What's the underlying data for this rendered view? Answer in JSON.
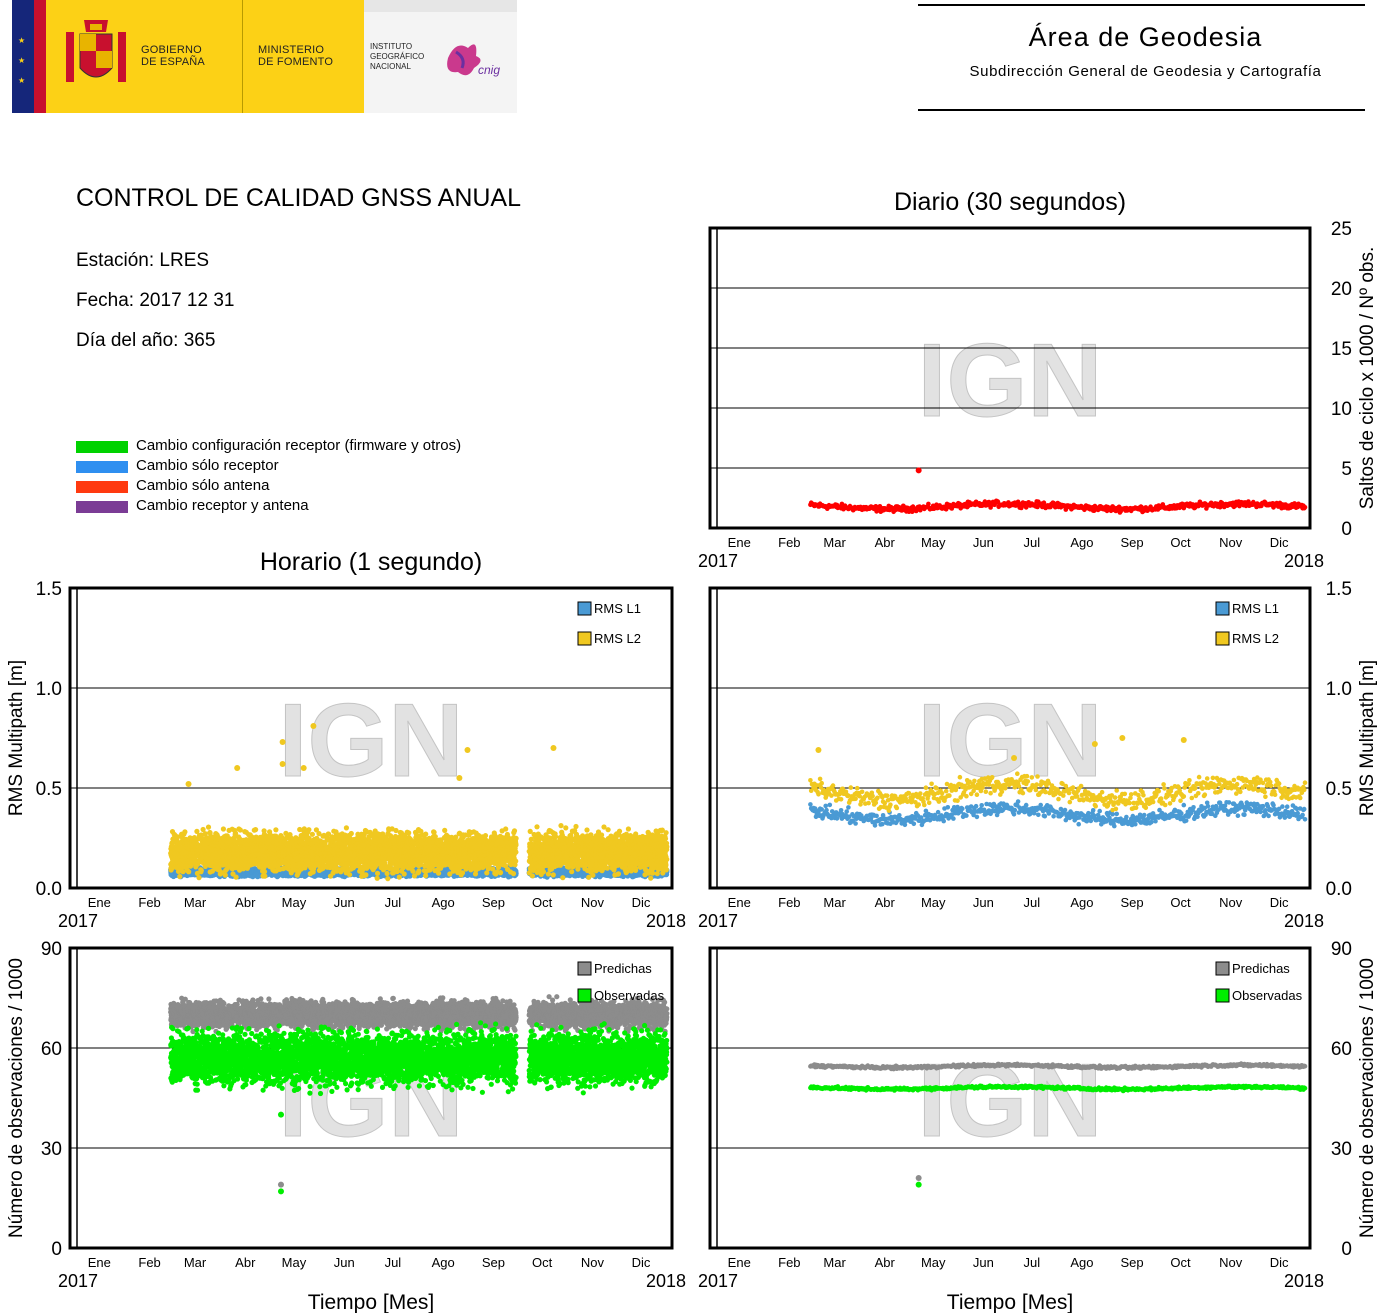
{
  "header": {
    "gov_line1": "GOBIERNO",
    "gov_line2": "DE ESPAÑA",
    "min_line1": "MINISTERIO",
    "min_line2": "DE FOMENTO",
    "ign_line1": "INSTITUTO",
    "ign_line2": "GEOGRÁFICO",
    "ign_line3": "NACIONAL",
    "cnig_logo_text": "cnig",
    "area_title": "Área de Geodesia",
    "area_subtitle": "Subdirección General de Geodesia y Cartografía"
  },
  "info": {
    "title": "CONTROL DE CALIDAD GNSS ANUAL",
    "station": "Estación: LRES",
    "date": "Fecha: 2017 12 31",
    "doy": "Día del año: 365"
  },
  "legend": [
    {
      "label": "Cambio configuración receptor (firmware y otros)",
      "color": "#00d200"
    },
    {
      "label": "Cambio sólo receptor",
      "color": "#2f8ff0"
    },
    {
      "label": "Cambio sólo antena",
      "color": "#ff3a10"
    },
    {
      "label": "Cambio receptor y antena",
      "color": "#7b3c95"
    }
  ],
  "section_titles": {
    "daily": "Diario (30 segundos)",
    "hourly": "Horario (1 segundo)"
  },
  "watermark": "IGN",
  "colors": {
    "l1": "#4a9ad4",
    "l2": "#f0c820",
    "pred": "#8c8c8c",
    "obs": "#00ee00",
    "slips": "#ff0000"
  },
  "chart_data": [
    {
      "id": "slips-daily",
      "type": "scatter",
      "title": "Diario (30 segundos)",
      "ylabel": "Saltos de ciclo x 1000 / Nº obs.",
      "xlabel": "",
      "x_ticks": [
        "Ene",
        "Feb",
        "Mar",
        "Abr",
        "May",
        "Jun",
        "Jul",
        "Ago",
        "Sep",
        "Oct",
        "Nov",
        "Dic"
      ],
      "x_start": "2017",
      "x_end": "2018",
      "ylim": [
        0,
        25
      ],
      "yticks": [
        0,
        5,
        10,
        15,
        20,
        25
      ],
      "y_axis_side": "right",
      "series": [
        {
          "color": "#ff0000",
          "x_range_days": [
            59,
            365
          ],
          "level": 1.8,
          "spread": 0.35,
          "outliers": [
            [
              126,
              4.8
            ]
          ]
        }
      ]
    },
    {
      "id": "rms-hourly",
      "type": "scatter",
      "ylabel": "RMS Multipath [m]",
      "xlabel": "",
      "x_ticks": [
        "Ene",
        "Feb",
        "Mar",
        "Abr",
        "May",
        "Jun",
        "Jul",
        "Ago",
        "Sep",
        "Oct",
        "Nov",
        "Dic"
      ],
      "x_start": "2017",
      "x_end": "2018",
      "ylim": [
        0,
        1.5
      ],
      "yticks": [
        "0.0",
        "0.5",
        "1.0",
        "1.5"
      ],
      "y_axis_side": "left",
      "legend": [
        "RMS L1",
        "RMS L2"
      ],
      "gaps_days": [
        [
          272,
          280
        ]
      ],
      "series": [
        {
          "name": "RMS L1",
          "color": "#4a9ad4",
          "x_range_days": [
            59,
            365
          ],
          "level": 0.08,
          "spread": 0.02
        },
        {
          "name": "RMS L2",
          "color": "#f0c820",
          "x_range_days": [
            59,
            365
          ],
          "level": 0.18,
          "spread": 0.1,
          "outliers": [
            [
              128,
              0.73
            ],
            [
              128,
              0.62
            ],
            [
              147,
              0.81
            ],
            [
              141,
              0.6
            ],
            [
              237,
              0.55
            ],
            [
              242,
              0.69
            ],
            [
              295,
              0.7
            ],
            [
              70,
              0.52
            ],
            [
              100,
              0.6
            ]
          ]
        }
      ]
    },
    {
      "id": "rms-daily",
      "type": "scatter",
      "ylabel": "RMS Multipath [m]",
      "xlabel": "",
      "x_ticks": [
        "Ene",
        "Feb",
        "Mar",
        "Abr",
        "May",
        "Jun",
        "Jul",
        "Ago",
        "Sep",
        "Oct",
        "Nov",
        "Dic"
      ],
      "x_start": "2017",
      "x_end": "2018",
      "ylim": [
        0,
        1.5
      ],
      "yticks": [
        "0.0",
        "0.5",
        "1.0",
        "1.5"
      ],
      "y_axis_side": "right",
      "legend": [
        "RMS L1",
        "RMS L2"
      ],
      "series": [
        {
          "name": "RMS L1",
          "color": "#4a9ad4",
          "x_range_days": [
            59,
            365
          ],
          "level": 0.37,
          "spread": 0.05
        },
        {
          "name": "RMS L2",
          "color": "#f0c820",
          "x_range_days": [
            59,
            365
          ],
          "level": 0.48,
          "spread": 0.07,
          "outliers": [
            [
              64,
              0.69
            ],
            [
              235,
              0.72
            ],
            [
              252,
              0.75
            ],
            [
              290,
              0.74
            ],
            [
              185,
              0.65
            ]
          ]
        }
      ]
    },
    {
      "id": "obs-hourly",
      "type": "scatter",
      "ylabel": "Número de observaciones / 1000",
      "xlabel": "Tiempo [Mes]",
      "x_ticks": [
        "Ene",
        "Feb",
        "Mar",
        "Abr",
        "May",
        "Jun",
        "Jul",
        "Ago",
        "Sep",
        "Oct",
        "Nov",
        "Dic"
      ],
      "x_start": "2017",
      "x_end": "2018",
      "ylim": [
        0,
        90
      ],
      "yticks": [
        0,
        30,
        60,
        90
      ],
      "y_axis_side": "left",
      "legend": [
        "Predichas",
        "Observadas"
      ],
      "gaps_days": [
        [
          272,
          280
        ]
      ],
      "series": [
        {
          "name": "Predichas",
          "color": "#8c8c8c",
          "x_range_days": [
            59,
            365
          ],
          "level": 70,
          "spread": 4,
          "outliers": [
            [
              127,
              19
            ]
          ]
        },
        {
          "name": "Observadas",
          "color": "#00ee00",
          "x_range_days": [
            59,
            365
          ],
          "level": 57,
          "spread": 8,
          "outliers": [
            [
              127,
              17
            ],
            [
              127,
              40
            ]
          ]
        }
      ]
    },
    {
      "id": "obs-daily",
      "type": "scatter",
      "ylabel": "Número de observaciones / 1000",
      "xlabel": "Tiempo [Mes]",
      "x_ticks": [
        "Ene",
        "Feb",
        "Mar",
        "Abr",
        "May",
        "Jun",
        "Jul",
        "Ago",
        "Sep",
        "Oct",
        "Nov",
        "Dic"
      ],
      "x_start": "2017",
      "x_end": "2018",
      "ylim": [
        0,
        90
      ],
      "yticks": [
        0,
        30,
        60,
        90
      ],
      "y_axis_side": "right",
      "legend": [
        "Predichas",
        "Observadas"
      ],
      "series": [
        {
          "name": "Predichas",
          "color": "#8c8c8c",
          "x_range_days": [
            59,
            365
          ],
          "level": 54.5,
          "spread": 0.6,
          "outliers": [
            [
              126,
              21
            ]
          ]
        },
        {
          "name": "Observadas",
          "color": "#00ee00",
          "x_range_days": [
            59,
            365
          ],
          "level": 48,
          "spread": 0.6,
          "outliers": [
            [
              126,
              19
            ]
          ]
        }
      ]
    }
  ]
}
